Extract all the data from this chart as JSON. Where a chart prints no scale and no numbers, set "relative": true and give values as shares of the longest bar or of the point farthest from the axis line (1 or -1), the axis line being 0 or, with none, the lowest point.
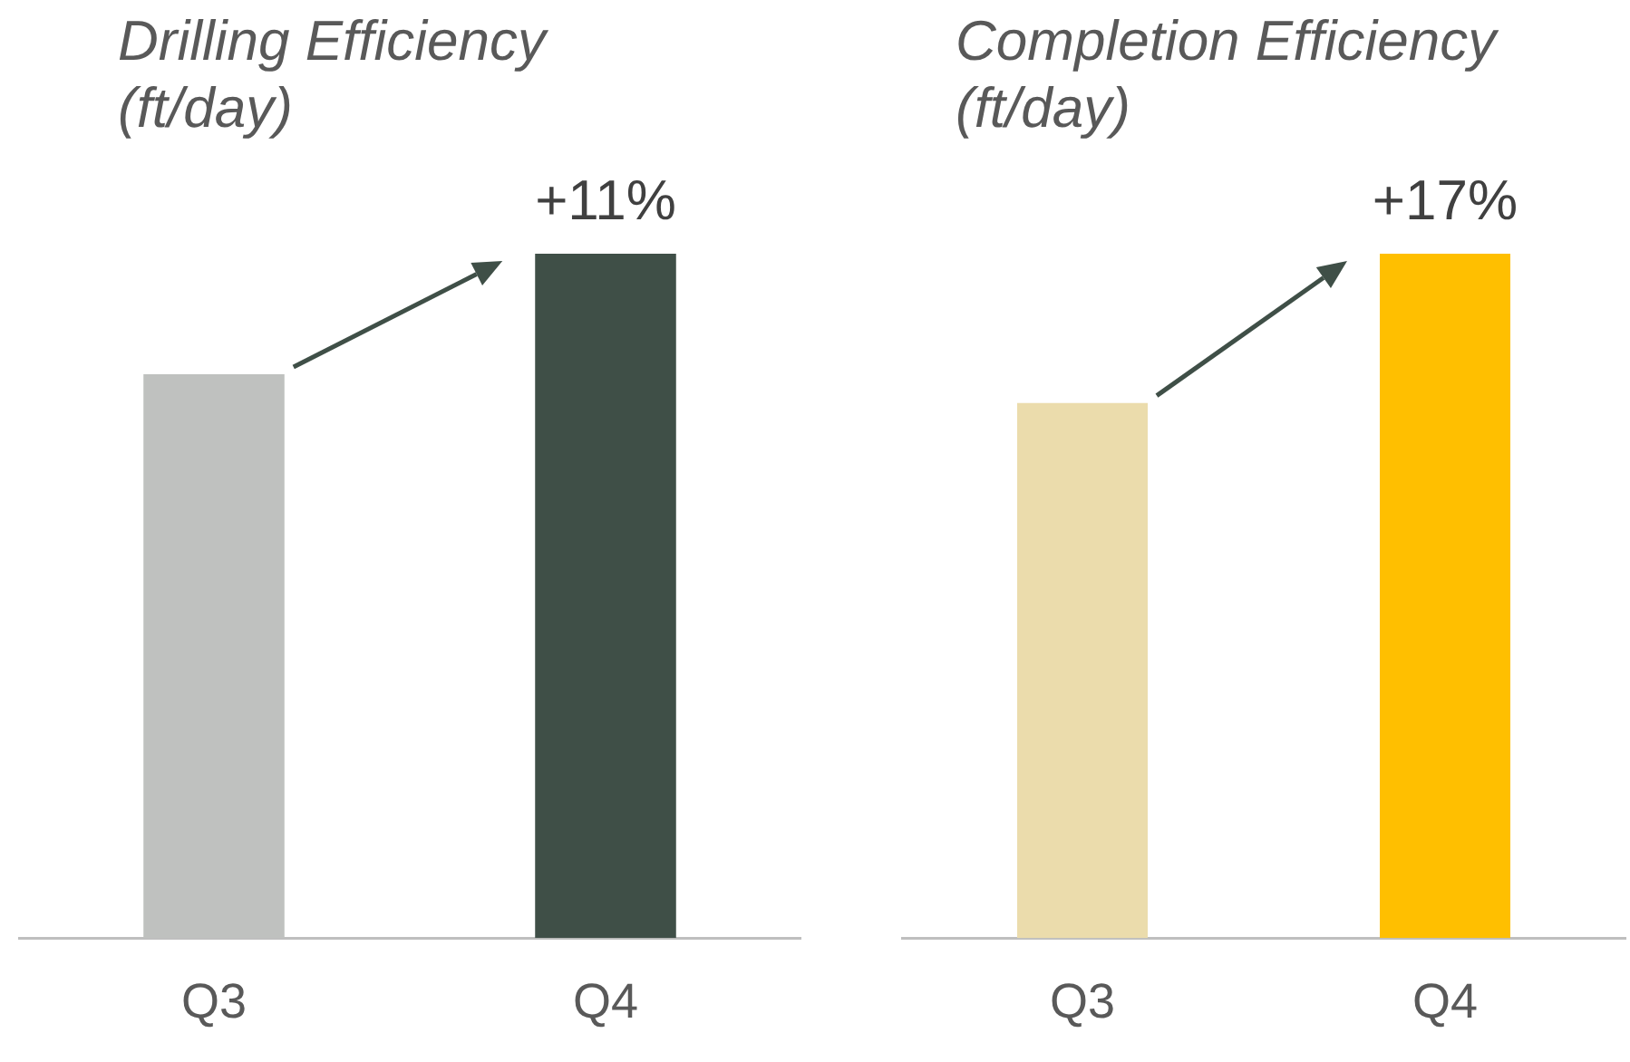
{
  "chart_data": [
    {
      "type": "bar",
      "title": "Drilling Efficiency (ft/day)",
      "categories": [
        "Q3",
        "Q4"
      ],
      "values": [
        0.824,
        1
      ],
      "colors": [
        "#bfc1bf",
        "#3f4f47"
      ],
      "relative": true,
      "annotations": [
        {
          "text": "+11%",
          "x": "Q4",
          "y": 1
        }
      ]
    },
    {
      "type": "bar",
      "title": "Completion Efficiency (ft/day)",
      "categories": [
        "Q3",
        "Q4"
      ],
      "values": [
        0.782,
        1
      ],
      "colors": [
        "#ebdcac",
        "#ffbf00"
      ],
      "relative": true,
      "annotations": [
        {
          "text": "+17%",
          "x": "Q4",
          "y": 1
        }
      ]
    }
  ]
}
